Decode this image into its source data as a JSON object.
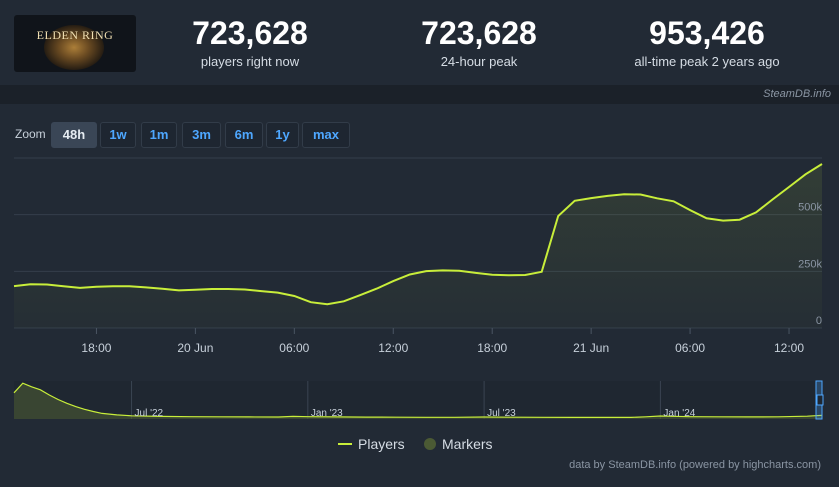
{
  "header": {
    "logo_text": "ELDEN RING",
    "stats": [
      {
        "value": "723,628",
        "label": "players right now"
      },
      {
        "value": "723,628",
        "label": "24-hour peak"
      },
      {
        "value": "953,426",
        "label": "all-time peak 2 years ago"
      }
    ],
    "source": "SteamDB.info"
  },
  "zoom": {
    "label": "Zoom",
    "options": [
      "48h",
      "1w",
      "1m",
      "3m",
      "6m",
      "1y",
      "max"
    ],
    "active": "48h"
  },
  "legend": {
    "players": "Players",
    "markers": "Markers"
  },
  "credits": "data by SteamDB.info (powered by highcharts.com)",
  "colors": {
    "line": "#c8ee3a",
    "accent": "#4ea7ff",
    "background": "#222a35"
  },
  "chart_data": [
    {
      "type": "line",
      "name": "main",
      "x_ticks": [
        "18:00",
        "20 Jun",
        "06:00",
        "12:00",
        "18:00",
        "21 Jun",
        "06:00",
        "12:00"
      ],
      "x_tick_hours": [
        5,
        11,
        17,
        23,
        29,
        35,
        41,
        47
      ],
      "y_ticks": [
        "0",
        "250k",
        "500k"
      ],
      "y_tick_values": [
        0,
        250000,
        500000
      ],
      "ylim": [
        0,
        750000
      ],
      "xlim": [
        0,
        49
      ],
      "grid": true,
      "series": [
        {
          "name": "Players",
          "x": [
            0,
            1,
            2,
            3,
            4,
            5,
            6,
            7,
            8,
            9,
            10,
            11,
            12,
            13,
            14,
            15,
            16,
            17,
            18,
            19,
            20,
            21,
            22,
            23,
            24,
            25,
            26,
            27,
            28,
            29,
            30,
            31,
            32,
            33,
            34,
            35,
            36,
            37,
            38,
            39,
            40,
            41,
            42,
            43,
            44,
            45,
            46,
            47,
            48,
            49
          ],
          "values": [
            185000,
            193000,
            192000,
            184000,
            177000,
            182000,
            184000,
            184000,
            179000,
            173000,
            166000,
            169000,
            172000,
            172000,
            170000,
            163000,
            156000,
            141000,
            114000,
            105000,
            118000,
            145000,
            174000,
            207000,
            236000,
            251000,
            254000,
            253000,
            243000,
            235000,
            233000,
            234000,
            248000,
            494000,
            561000,
            573000,
            583000,
            590000,
            589000,
            572000,
            559000,
            520000,
            484000,
            474000,
            478000,
            510000,
            567000,
            622000,
            678000,
            723628
          ]
        }
      ]
    },
    {
      "type": "area",
      "name": "navigator",
      "x_ticks": [
        "Jul '22",
        "Jan '23",
        "Jul '23",
        "Jan '24"
      ],
      "x_tick_months": [
        4,
        10,
        16,
        22
      ],
      "xlim": [
        0,
        27.5
      ],
      "ylim": [
        0,
        960000
      ],
      "series": [
        {
          "name": "Players",
          "x": [
            0,
            0.3,
            0.6,
            0.9,
            1.2,
            1.5,
            1.8,
            2.1,
            2.4,
            2.7,
            3.0,
            3.5,
            4,
            5,
            6,
            7,
            8,
            9,
            9.5,
            10,
            11,
            12,
            13,
            14,
            15,
            16,
            17,
            18,
            19,
            20,
            21,
            21.5,
            22,
            23,
            24,
            25,
            26,
            27,
            27.5
          ],
          "values": [
            700000,
            953426,
            860000,
            780000,
            640000,
            520000,
            420000,
            330000,
            260000,
            200000,
            150000,
            110000,
            85000,
            70000,
            62000,
            58000,
            55000,
            54000,
            70000,
            62000,
            55000,
            50000,
            48000,
            46000,
            45000,
            52000,
            48000,
            45000,
            44000,
            43000,
            44000,
            60000,
            80000,
            62000,
            58000,
            56000,
            60000,
            75000,
            100000
          ]
        }
      ]
    }
  ]
}
